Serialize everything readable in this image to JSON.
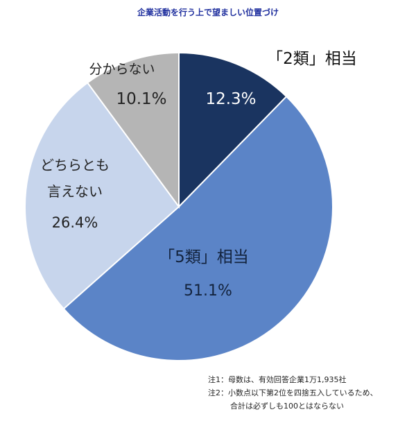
{
  "chart_data": {
    "type": "pie",
    "title": "企業活動を行う上で望ましい位置づけ",
    "slices": [
      {
        "name": "「2類」相当",
        "value": 12.3,
        "value_label": "12.3%",
        "color": "#1a3460",
        "label_color": "#ffffff"
      },
      {
        "name": "「5類」相当",
        "value": 51.1,
        "value_label": "51.1%",
        "color": "#5b84c7",
        "label_color": "#13233d"
      },
      {
        "name": "どちらとも言えない",
        "name_lines": [
          "どちらとも",
          "言えない"
        ],
        "value": 26.4,
        "value_label": "26.4%",
        "color": "#c7d5ec",
        "label_color": "#222222"
      },
      {
        "name": "分からない",
        "value": 10.1,
        "value_label": "10.1%",
        "color": "#b5b5b5",
        "label_color": "#222222"
      }
    ]
  },
  "notes": [
    "注1：母数は、有効回答企業1万1,935社",
    "注2：小数点以下第2位を四捨五入しているため、",
    "合計は必ずしも100とはならない"
  ]
}
